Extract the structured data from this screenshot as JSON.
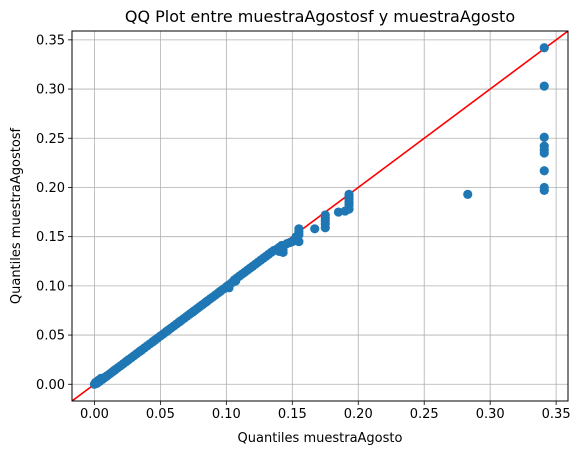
{
  "chart_data": {
    "type": "scatter",
    "title": "QQ Plot entre muestraAgostosf y muestraAgosto",
    "xlabel": "Quantiles muestraAgosto",
    "ylabel": "Quantiles muestraAgostosf",
    "xlim": [
      -0.017,
      0.359
    ],
    "ylim": [
      -0.017,
      0.359
    ],
    "xticks": [
      0.0,
      0.05,
      0.1,
      0.15,
      0.2,
      0.25,
      0.3,
      0.35
    ],
    "xtick_labels": [
      "0.00",
      "0.05",
      "0.10",
      "0.15",
      "0.20",
      "0.25",
      "0.30",
      "0.35"
    ],
    "yticks": [
      0.0,
      0.05,
      0.1,
      0.15,
      0.2,
      0.25,
      0.3,
      0.35
    ],
    "ytick_labels": [
      "0.00",
      "0.05",
      "0.10",
      "0.15",
      "0.20",
      "0.25",
      "0.30",
      "0.35"
    ],
    "grid": true,
    "reference_line": {
      "slope": 1,
      "intercept": 0,
      "color": "#ff0000"
    },
    "marker_color": "#1f77b4",
    "points": [
      [
        0.0,
        0.0
      ],
      [
        0.002,
        0.001
      ],
      [
        0.004,
        0.003
      ],
      [
        0.006,
        0.005
      ],
      [
        0.008,
        0.007
      ],
      [
        0.01,
        0.009
      ],
      [
        0.012,
        0.011
      ],
      [
        0.014,
        0.013
      ],
      [
        0.016,
        0.015
      ],
      [
        0.018,
        0.017
      ],
      [
        0.02,
        0.019
      ],
      [
        0.022,
        0.021
      ],
      [
        0.024,
        0.023
      ],
      [
        0.026,
        0.025
      ],
      [
        0.028,
        0.027
      ],
      [
        0.03,
        0.029
      ],
      [
        0.032,
        0.031
      ],
      [
        0.034,
        0.033
      ],
      [
        0.036,
        0.035
      ],
      [
        0.038,
        0.037
      ],
      [
        0.04,
        0.039
      ],
      [
        0.042,
        0.041
      ],
      [
        0.044,
        0.043
      ],
      [
        0.046,
        0.045
      ],
      [
        0.048,
        0.047
      ],
      [
        0.05,
        0.049
      ],
      [
        0.052,
        0.051
      ],
      [
        0.054,
        0.053
      ],
      [
        0.056,
        0.055
      ],
      [
        0.058,
        0.057
      ],
      [
        0.06,
        0.059
      ],
      [
        0.062,
        0.061
      ],
      [
        0.064,
        0.063
      ],
      [
        0.066,
        0.065
      ],
      [
        0.068,
        0.067
      ],
      [
        0.07,
        0.069
      ],
      [
        0.072,
        0.071
      ],
      [
        0.074,
        0.073
      ],
      [
        0.076,
        0.075
      ],
      [
        0.078,
        0.077
      ],
      [
        0.08,
        0.079
      ],
      [
        0.082,
        0.081
      ],
      [
        0.084,
        0.083
      ],
      [
        0.086,
        0.085
      ],
      [
        0.088,
        0.087
      ],
      [
        0.09,
        0.089
      ],
      [
        0.092,
        0.091
      ],
      [
        0.094,
        0.093
      ],
      [
        0.096,
        0.095
      ],
      [
        0.098,
        0.097
      ],
      [
        0.1,
        0.099
      ],
      [
        0.102,
        0.101
      ],
      [
        0.104,
        0.103
      ],
      [
        0.106,
        0.106
      ],
      [
        0.108,
        0.108
      ],
      [
        0.11,
        0.11
      ],
      [
        0.112,
        0.112
      ],
      [
        0.114,
        0.114
      ],
      [
        0.116,
        0.116
      ],
      [
        0.118,
        0.118
      ],
      [
        0.12,
        0.12
      ],
      [
        0.122,
        0.122
      ],
      [
        0.124,
        0.124
      ],
      [
        0.126,
        0.126
      ],
      [
        0.128,
        0.128
      ],
      [
        0.13,
        0.13
      ],
      [
        0.132,
        0.132
      ],
      [
        0.134,
        0.134
      ],
      [
        0.001,
        0.002
      ],
      [
        0.003,
        0.004
      ],
      [
        0.005,
        0.006
      ],
      [
        0.009,
        0.008
      ],
      [
        0.015,
        0.014
      ],
      [
        0.025,
        0.024
      ],
      [
        0.035,
        0.034
      ],
      [
        0.045,
        0.044
      ],
      [
        0.055,
        0.054
      ],
      [
        0.065,
        0.064
      ],
      [
        0.075,
        0.074
      ],
      [
        0.085,
        0.084
      ],
      [
        0.095,
        0.094
      ],
      [
        0.105,
        0.104
      ],
      [
        0.107,
        0.105
      ],
      [
        0.102,
        0.098
      ],
      [
        0.101,
        0.1
      ],
      [
        0.136,
        0.136
      ],
      [
        0.138,
        0.137
      ],
      [
        0.14,
        0.139
      ],
      [
        0.142,
        0.141
      ],
      [
        0.14,
        0.135
      ],
      [
        0.142,
        0.136
      ],
      [
        0.143,
        0.134
      ],
      [
        0.143,
        0.137
      ],
      [
        0.146,
        0.143
      ],
      [
        0.148,
        0.144
      ],
      [
        0.15,
        0.145
      ],
      [
        0.152,
        0.147
      ],
      [
        0.153,
        0.15
      ],
      [
        0.155,
        0.145
      ],
      [
        0.155,
        0.152
      ],
      [
        0.155,
        0.155
      ],
      [
        0.155,
        0.158
      ],
      [
        0.167,
        0.158
      ],
      [
        0.175,
        0.159
      ],
      [
        0.175,
        0.163
      ],
      [
        0.175,
        0.166
      ],
      [
        0.175,
        0.169
      ],
      [
        0.175,
        0.172
      ],
      [
        0.185,
        0.175
      ],
      [
        0.19,
        0.176
      ],
      [
        0.193,
        0.178
      ],
      [
        0.193,
        0.182
      ],
      [
        0.193,
        0.185
      ],
      [
        0.193,
        0.188
      ],
      [
        0.193,
        0.191
      ],
      [
        0.193,
        0.193
      ],
      [
        0.283,
        0.193
      ],
      [
        0.341,
        0.197
      ],
      [
        0.341,
        0.2
      ],
      [
        0.341,
        0.217
      ],
      [
        0.341,
        0.235
      ],
      [
        0.341,
        0.238
      ],
      [
        0.341,
        0.242
      ],
      [
        0.341,
        0.251
      ],
      [
        0.341,
        0.303
      ],
      [
        0.341,
        0.342
      ]
    ]
  }
}
